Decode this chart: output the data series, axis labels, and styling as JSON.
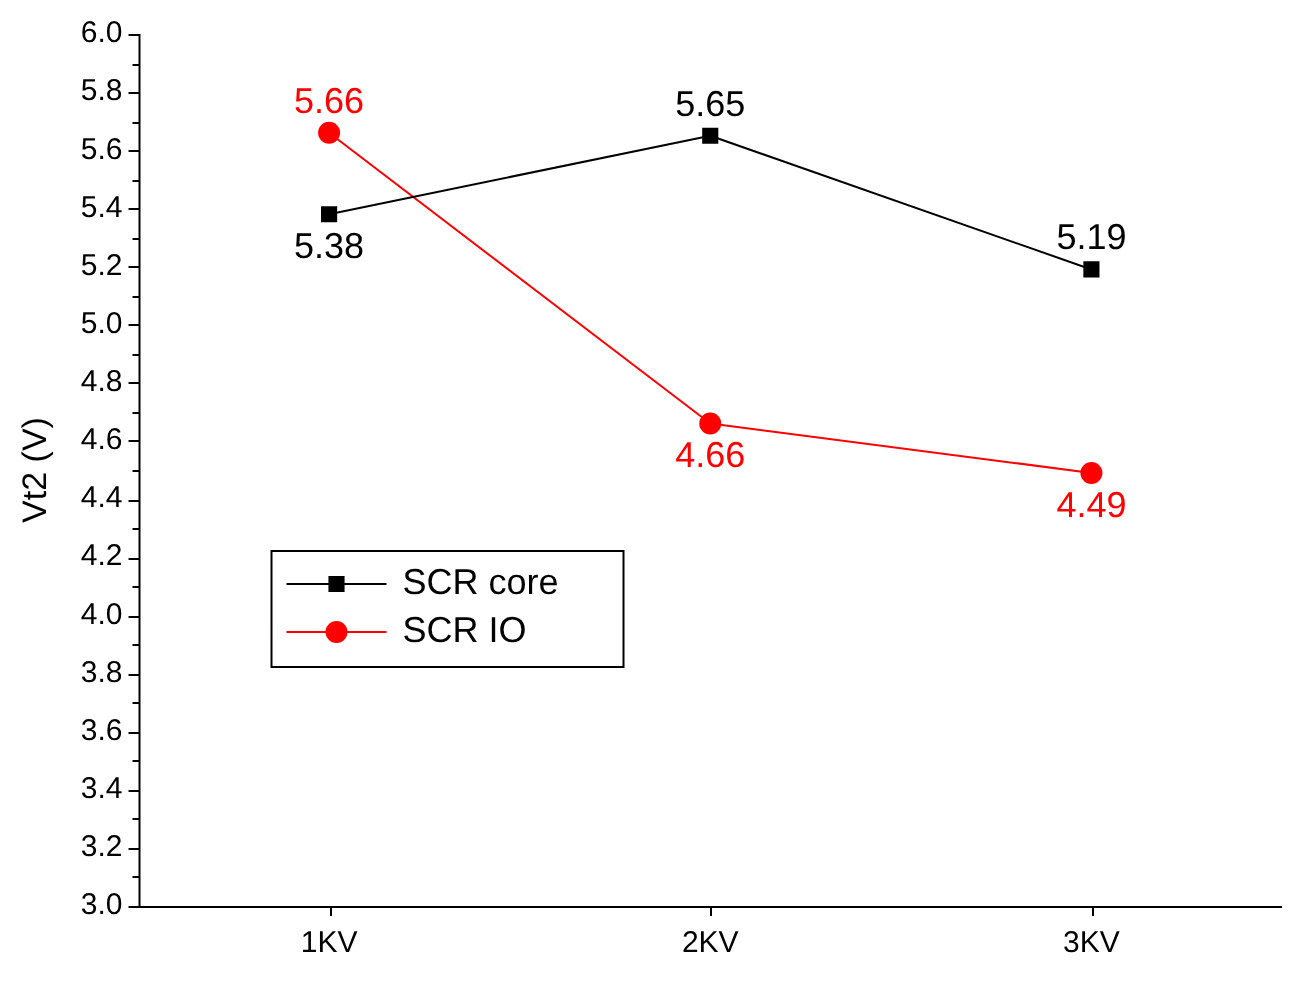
{
  "chart_data": {
    "type": "line",
    "ylabel": "Vt2 (V)",
    "categories": [
      "1KV",
      "2KV",
      "3KV"
    ],
    "series": [
      {
        "name": "SCR core",
        "color": "#000000",
        "marker": "square",
        "values": [
          5.38,
          5.65,
          5.19
        ]
      },
      {
        "name": "SCR IO",
        "color": "#ff0000",
        "marker": "circle",
        "values": [
          5.66,
          4.66,
          4.49
        ]
      }
    ],
    "ylim": [
      3.0,
      6.0
    ],
    "yticks": [
      {
        "value": 3.0,
        "label": "3.0"
      },
      {
        "value": 3.2,
        "label": "3.2"
      },
      {
        "value": 3.4,
        "label": "3.4"
      },
      {
        "value": 3.6,
        "label": "3.6"
      },
      {
        "value": 3.8,
        "label": "3.8"
      },
      {
        "value": 4.0,
        "label": "4.0"
      },
      {
        "value": 4.2,
        "label": "4.2"
      },
      {
        "value": 4.4,
        "label": "4.4"
      },
      {
        "value": 4.6,
        "label": "4.6"
      },
      {
        "value": 4.8,
        "label": "4.8"
      },
      {
        "value": 5.0,
        "label": "5.0"
      },
      {
        "value": 5.2,
        "label": "5.2"
      },
      {
        "value": 5.4,
        "label": "5.4"
      },
      {
        "value": 5.6,
        "label": "5.6"
      },
      {
        "value": 5.8,
        "label": "5.8"
      },
      {
        "value": 6.0,
        "label": "6.0"
      }
    ],
    "grid": false,
    "legend": "center left",
    "data_labels": true,
    "line_style": "solid"
  }
}
